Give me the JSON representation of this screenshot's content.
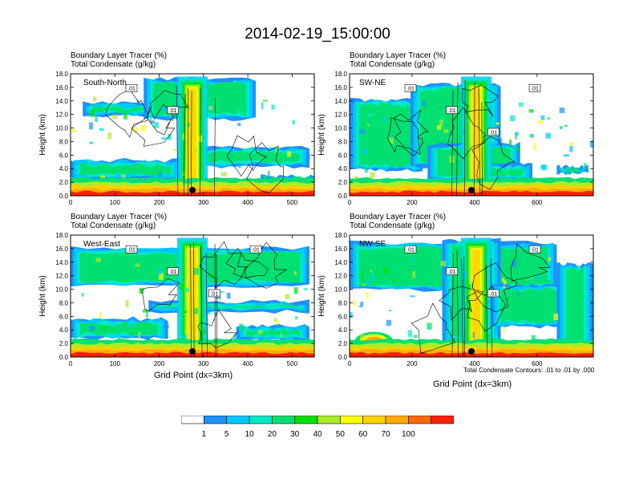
{
  "title": "2014-02-19_15:00:00",
  "chart_data": [
    {
      "type": "heatmap",
      "panel_id": "south-north",
      "label": "South-North",
      "title_line1": "Boundary Layer Tracer   (%)",
      "title_line2": "Total Condensate   (g/kg)",
      "ylabel": "Height (km)",
      "xlabel": "",
      "xlim": [
        0,
        550
      ],
      "ylim": [
        0,
        18
      ],
      "xticks": [
        0,
        100,
        200,
        300,
        400,
        500
      ],
      "yticks": [
        "0.0",
        "2.0",
        "4.0",
        "6.0",
        "8.0",
        "10.0",
        "12.0",
        "14.0",
        "16.0",
        "18.0"
      ],
      "contour_labels": [
        ".01",
        ".01"
      ],
      "marker_x": 275
    },
    {
      "type": "heatmap",
      "panel_id": "sw-ne",
      "label": "SW-NE",
      "title_line1": "Boundary Layer Tracer   (%)",
      "title_line2": "Total Condensate   (g/kg)",
      "ylabel": "Height (km)",
      "xlabel": "",
      "xlim": [
        0,
        780
      ],
      "ylim": [
        0,
        18
      ],
      "xticks": [
        0,
        200,
        400,
        600
      ],
      "yticks": [
        "0.0",
        "2.0",
        "4.0",
        "6.0",
        "8.0",
        "10.0",
        "12.0",
        "14.0",
        "16.0",
        "18.0"
      ],
      "contour_labels": [
        ".01",
        ".01",
        ".01",
        ".01"
      ],
      "marker_x": 390
    },
    {
      "type": "heatmap",
      "panel_id": "west-east",
      "label": "West-East",
      "title_line1": "Boundary Layer Tracer   (%)",
      "title_line2": "Total Condensate   (g/kg)",
      "ylabel": "Height (km)",
      "xlabel": "Grid Point (dx=3km)",
      "xlim": [
        0,
        550
      ],
      "ylim": [
        0,
        18
      ],
      "xticks": [
        0,
        100,
        200,
        300,
        400,
        500
      ],
      "yticks": [
        "0.0",
        "2.0",
        "4.0",
        "6.0",
        "8.0",
        "10.0",
        "12.0",
        "14.0",
        "16.0",
        "18.0"
      ],
      "contour_labels": [
        ".01",
        ".01",
        ".01",
        ".01"
      ],
      "marker_x": 275
    },
    {
      "type": "heatmap",
      "panel_id": "nw-se",
      "label": "NW-SE",
      "title_line1": "Boundary Layer Tracer   (%)",
      "title_line2": "Total Condensate   (g/kg)",
      "ylabel": "Height (km)",
      "xlabel": "Grid Point (dx=3km)",
      "xlim": [
        0,
        780
      ],
      "ylim": [
        0,
        18
      ],
      "xticks": [
        0,
        200,
        400,
        600
      ],
      "yticks": [
        "0.0",
        "2.0",
        "4.0",
        "6.0",
        "8.0",
        "10.0",
        "12.0",
        "14.0",
        "16.0",
        "18.0"
      ],
      "contour_labels": [
        ".01",
        ".01",
        ".01",
        ".01"
      ],
      "marker_x": 390
    }
  ],
  "contour_note": "Total Condensate Contours: .01 to .01 by .000",
  "colorbar": {
    "labels": [
      "1",
      "5",
      "10",
      "20",
      "30",
      "40",
      "50",
      "60",
      "70",
      "100"
    ],
    "colors": [
      "#ffffff",
      "#1e90ff",
      "#00c8ff",
      "#00e8c8",
      "#00e070",
      "#00e000",
      "#a8ec2a",
      "#ffff00",
      "#ffd000",
      "#ffaa00",
      "#ff6a00",
      "#ff2000"
    ]
  }
}
